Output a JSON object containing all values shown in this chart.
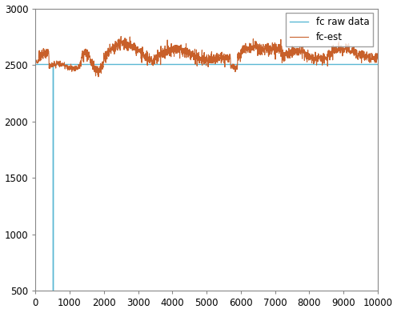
{
  "xlim": [
    0,
    10000
  ],
  "ylim": [
    500,
    3000
  ],
  "xticks": [
    0,
    1000,
    2000,
    3000,
    4000,
    5000,
    6000,
    7000,
    8000,
    9000,
    10000
  ],
  "yticks": [
    500,
    1000,
    1500,
    2000,
    2500,
    3000
  ],
  "fc_raw_color": "#5bb8d4",
  "fc_est_color": "#c8602a",
  "legend_labels": [
    "fc raw data",
    "fc-est"
  ],
  "background_color": "#ffffff",
  "outlier_x": 500,
  "outlier_y_bottom": 500,
  "fc_raw_baseline": 2510,
  "seed": 7
}
